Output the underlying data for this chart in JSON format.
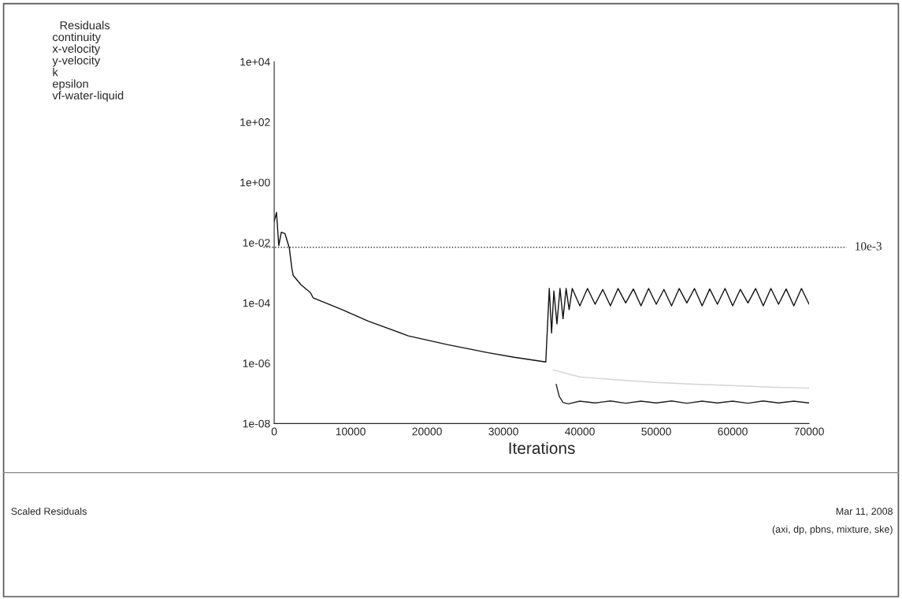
{
  "chart_data": {
    "type": "line",
    "xlabel": "Iterations",
    "xlim": [
      0,
      70000
    ],
    "xticks": [
      0,
      10000,
      20000,
      30000,
      40000,
      50000,
      60000,
      70000
    ],
    "ylim": [
      1e-08,
      10000
    ],
    "log": "y",
    "yticks": [
      {
        "value": 10000,
        "label": "1e+04"
      },
      {
        "value": 100,
        "label": "1e+02"
      },
      {
        "value": 1,
        "label": "1e+00"
      },
      {
        "value": 0.01,
        "label": "1e-02"
      },
      {
        "value": 0.0001,
        "label": "1e-04"
      },
      {
        "value": 1e-06,
        "label": "1e-06"
      },
      {
        "value": 1e-08,
        "label": "1e-08"
      }
    ],
    "grid": false,
    "legend": false,
    "marker": "none",
    "line_style": "solid",
    "series": [
      {
        "color": "#111111",
        "x": [
          0,
          300,
          600,
          930,
          1400,
          1970,
          2320,
          2490,
          3500,
          4740,
          5090,
          8890,
          12350,
          17540,
          22730,
          27920,
          31380,
          35540,
          36000,
          36300,
          36600,
          37000,
          37400,
          37800,
          38200,
          38600,
          39000,
          40000,
          41000,
          42000,
          43000,
          44000,
          45000,
          46000,
          47000,
          48000,
          49000,
          50000,
          51000,
          52000,
          53000,
          54000,
          55000,
          56000,
          57000,
          58000,
          59000,
          60000,
          61000,
          62000,
          63000,
          64000,
          65000,
          66000,
          67000,
          68000,
          69000,
          70000
        ],
        "values": [
          0.05,
          0.1,
          0.008,
          0.022,
          0.02,
          0.0068,
          0.00135,
          0.00081,
          0.0004,
          0.00022,
          0.000148,
          6e-05,
          2.45e-05,
          8.1e-06,
          4.1e-06,
          2.24e-06,
          1.58e-06,
          1.1e-06,
          0.0003,
          1e-05,
          0.00025,
          2e-05,
          0.0003,
          3e-05,
          0.0003,
          6e-05,
          0.0003,
          8e-05,
          0.0003,
          9e-05,
          0.00028,
          8e-05,
          0.0003,
          0.0001,
          0.00029,
          8e-05,
          0.0003,
          9e-05,
          0.00028,
          8e-05,
          0.0003,
          0.0001,
          0.0003,
          8e-05,
          0.00029,
          9e-05,
          0.0003,
          8e-05,
          0.00028,
          0.0001,
          0.0003,
          8e-05,
          0.0003,
          9e-05,
          0.00029,
          8e-05,
          0.0003,
          9e-05
        ]
      },
      {
        "color": "#d4d4d4",
        "x": [
          36500,
          40000,
          45000,
          50000,
          55000,
          60000,
          65000,
          70000
        ],
        "values": [
          6e-07,
          3.5e-07,
          2.8e-07,
          2.3e-07,
          2e-07,
          1.8e-07,
          1.6e-07,
          1.5e-07
        ]
      },
      {
        "color": "#222222",
        "x": [
          36900,
          37300,
          37800,
          38500,
          40000,
          42000,
          44000,
          46000,
          48000,
          50000,
          52000,
          54000,
          56000,
          58000,
          60000,
          62000,
          64000,
          66000,
          68000,
          70000
        ],
        "values": [
          2e-07,
          8e-08,
          5e-08,
          4.5e-08,
          5.5e-08,
          4.8e-08,
          5.6e-08,
          4.7e-08,
          5.5e-08,
          4.8e-08,
          5.6e-08,
          4.7e-08,
          5.5e-08,
          4.8e-08,
          5.5e-08,
          4.7e-08,
          5.6e-08,
          4.8e-08,
          5.5e-08,
          4.8e-08
        ]
      }
    ],
    "ref_lines": [
      {
        "axis": "y",
        "value": 0.007,
        "label": "10e-3",
        "line_style": "dotted",
        "color": "#333333"
      }
    ],
    "annotations": [
      "Residuals",
      "continuity",
      "x-velocity",
      "y-velocity",
      "k",
      "epsilon",
      "vf-water-liquid",
      "Scaled Residuals",
      "Mar 11, 2008",
      "(axi, dp, pbns, mixture, ske)"
    ]
  }
}
